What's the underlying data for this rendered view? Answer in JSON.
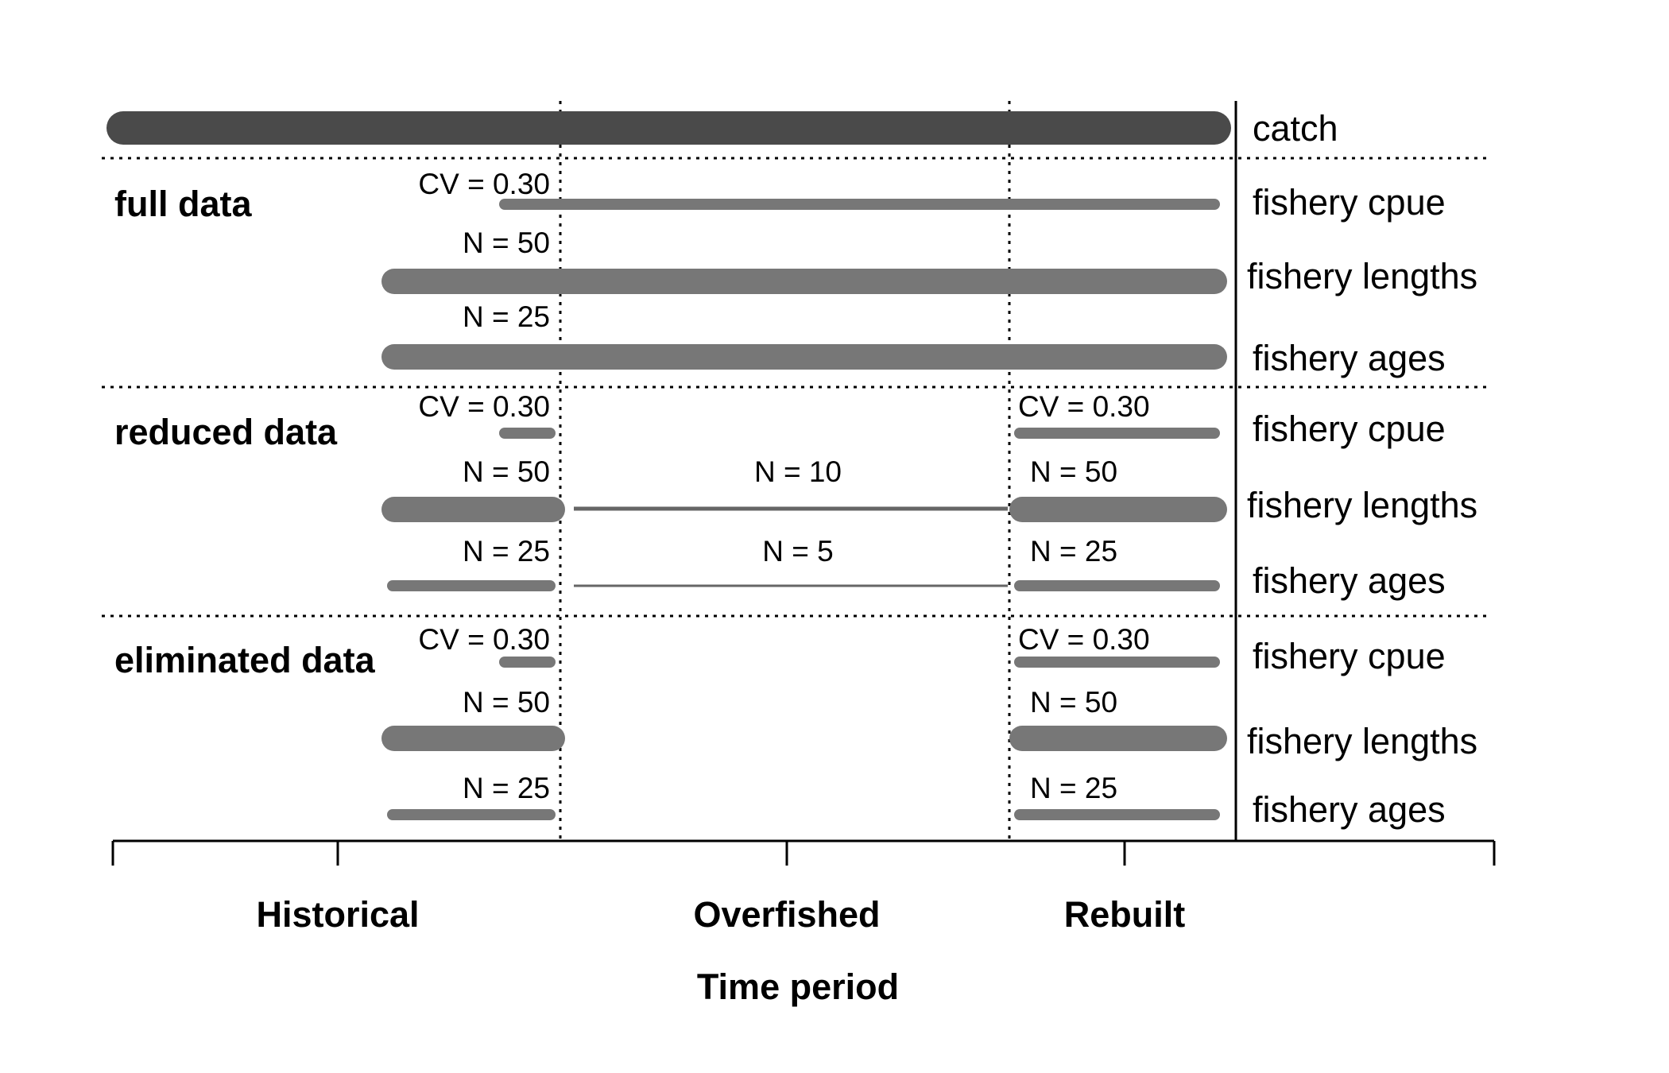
{
  "chart_data": {
    "type": "timeline",
    "xlabel": "Time period",
    "periods": [
      {
        "id": "historical",
        "label": "Historical"
      },
      {
        "id": "overfished",
        "label": "Overfished"
      },
      {
        "id": "rebuilt",
        "label": "Rebuilt"
      }
    ],
    "catch": {
      "label": "catch",
      "coverage": [
        "historical",
        "overfished",
        "rebuilt"
      ]
    },
    "scenarios": [
      {
        "name": "full data",
        "rows": [
          {
            "label": "fishery cpue",
            "segments": [
              {
                "from": "historical",
                "to": "rebuilt",
                "annotation": "CV = 0.30",
                "weight": "medium"
              }
            ]
          },
          {
            "label": "fishery lengths",
            "segments": [
              {
                "from": "historical",
                "to": "rebuilt",
                "annotation": "N = 50",
                "weight": "heavy"
              }
            ]
          },
          {
            "label": "fishery ages",
            "segments": [
              {
                "from": "historical",
                "to": "rebuilt",
                "annotation": "N = 25",
                "weight": "heavy"
              }
            ]
          }
        ]
      },
      {
        "name": "reduced data",
        "rows": [
          {
            "label": "fishery cpue",
            "segments": [
              {
                "period": "historical",
                "annotation": "CV = 0.30",
                "weight": "medium"
              },
              {
                "period": "rebuilt",
                "annotation": "CV = 0.30",
                "weight": "medium"
              }
            ]
          },
          {
            "label": "fishery lengths",
            "segments": [
              {
                "period": "historical",
                "annotation": "N = 50",
                "weight": "heavy"
              },
              {
                "period": "overfished",
                "annotation": "N = 10",
                "weight": "light"
              },
              {
                "period": "rebuilt",
                "annotation": "N = 50",
                "weight": "heavy"
              }
            ]
          },
          {
            "label": "fishery ages",
            "segments": [
              {
                "period": "historical",
                "annotation": "N = 25",
                "weight": "medium"
              },
              {
                "period": "overfished",
                "annotation": "N = 5",
                "weight": "thin"
              },
              {
                "period": "rebuilt",
                "annotation": "N = 25",
                "weight": "medium"
              }
            ]
          }
        ]
      },
      {
        "name": "eliminated data",
        "rows": [
          {
            "label": "fishery cpue",
            "segments": [
              {
                "period": "historical",
                "annotation": "CV = 0.30",
                "weight": "medium"
              },
              {
                "period": "rebuilt",
                "annotation": "CV = 0.30",
                "weight": "medium"
              }
            ]
          },
          {
            "label": "fishery lengths",
            "segments": [
              {
                "period": "historical",
                "annotation": "N = 50",
                "weight": "heavy"
              },
              {
                "period": "rebuilt",
                "annotation": "N = 50",
                "weight": "heavy"
              }
            ]
          },
          {
            "label": "fishery ages",
            "segments": [
              {
                "period": "historical",
                "annotation": "N = 25",
                "weight": "medium"
              },
              {
                "period": "rebuilt",
                "annotation": "N = 25",
                "weight": "medium"
              }
            ]
          }
        ]
      }
    ],
    "colors": {
      "catch": "#4a4a4a",
      "data": "#777777",
      "thin": "#666666",
      "lines": "#000000"
    }
  }
}
